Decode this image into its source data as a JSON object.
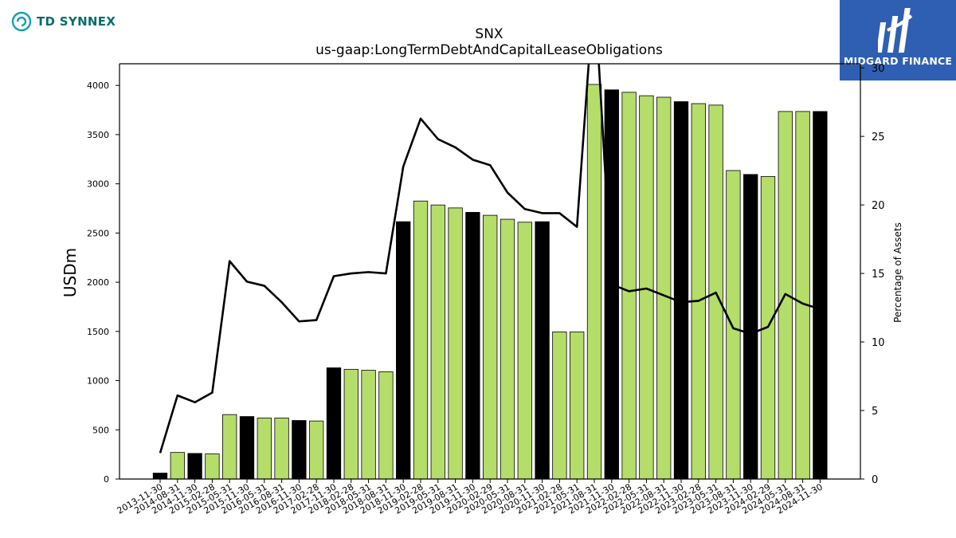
{
  "header": {
    "company_logo_text": "TD SYNNEX",
    "publisher_logo_text": "MIDGARD FINANCE"
  },
  "colors": {
    "company_brand": "#0a6b6b",
    "company_mark": "#14a0b4",
    "publisher_bg": "#2f5fb3",
    "bar_quarter": "#b5dd6a",
    "bar_fiscal_year_end": "#000000",
    "line": "#000000"
  },
  "chart_data": {
    "type": "bar",
    "title": "SNX",
    "subtitle": "us-gaap:LongTermDebtAndCapitalLeaseObligations",
    "ylabel": "USDm",
    "y2label": "Percentage of Assets",
    "ylim": [
      0,
      4220
    ],
    "y2lim": [
      0,
      30.3
    ],
    "yticks": [
      0,
      500,
      1000,
      1500,
      2000,
      2500,
      3000,
      3500,
      4000
    ],
    "y2ticks": [
      0,
      5,
      10,
      15,
      20,
      25,
      30
    ],
    "categories": [
      "2013-11-30",
      "2014-08-31",
      "2014-11-30",
      "2015-02-28",
      "2015-05-31",
      "2015-11-30",
      "2016-05-31",
      "2016-08-31",
      "2016-11-30",
      "2017-02-28",
      "2017-11-30",
      "2018-02-28",
      "2018-05-31",
      "2018-08-31",
      "2018-11-30",
      "2019-02-28",
      "2019-05-31",
      "2019-08-31",
      "2019-11-30",
      "2020-02-29",
      "2020-05-31",
      "2020-08-31",
      "2020-11-30",
      "2021-02-28",
      "2021-05-31",
      "2021-08-31",
      "2021-11-30",
      "2022-02-28",
      "2022-05-31",
      "2022-08-31",
      "2022-11-30",
      "2023-02-28",
      "2023-05-31",
      "2023-08-31",
      "2023-11-30",
      "2024-02-29",
      "2024-05-31",
      "2024-08-31",
      "2024-11-30"
    ],
    "series": [
      {
        "kind": "bar",
        "values": [
          60,
          270,
          260,
          255,
          655,
          635,
          620,
          620,
          595,
          590,
          1130,
          1115,
          1105,
          1090,
          2615,
          2825,
          2785,
          2755,
          2710,
          2680,
          2640,
          2610,
          2615,
          1495,
          1495,
          4010,
          3955,
          3930,
          3895,
          3880,
          3835,
          3815,
          3800,
          3135,
          3095,
          3075,
          3735,
          3735,
          3735
        ],
        "fiscal_year_end": [
          true,
          false,
          true,
          false,
          false,
          true,
          false,
          false,
          true,
          false,
          true,
          false,
          false,
          false,
          true,
          false,
          false,
          false,
          true,
          false,
          false,
          false,
          true,
          false,
          false,
          false,
          true,
          false,
          false,
          false,
          true,
          false,
          false,
          false,
          true,
          false,
          false,
          false,
          true
        ]
      },
      {
        "kind": "line",
        "axis": "right",
        "values": [
          1.9,
          6.1,
          5.6,
          6.3,
          15.9,
          14.4,
          14.1,
          12.9,
          11.5,
          11.6,
          14.8,
          15.0,
          15.1,
          15.0,
          22.8,
          26.3,
          24.8,
          24.2,
          23.3,
          22.9,
          20.9,
          19.7,
          19.4,
          19.4,
          18.4,
          36.0,
          14.2,
          13.7,
          13.9,
          13.4,
          12.9,
          13.0,
          13.6,
          11.0,
          10.6,
          11.1,
          13.5,
          12.8,
          12.4
        ]
      }
    ],
    "grid": false,
    "legend": "none"
  }
}
